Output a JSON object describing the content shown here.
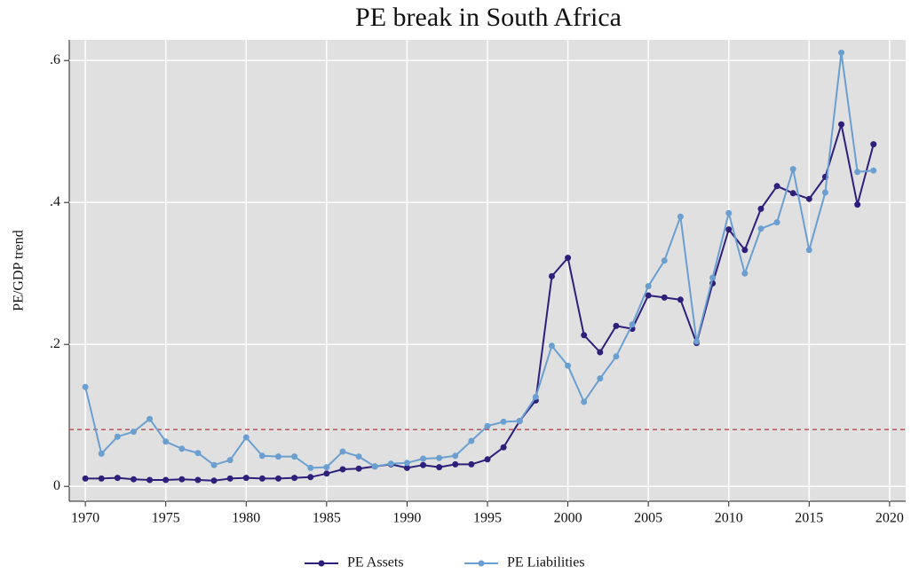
{
  "chart_data": {
    "type": "line",
    "title": "PE break in South Africa",
    "ylabel": "PE/GDP trend",
    "x": [
      1970,
      1971,
      1972,
      1973,
      1974,
      1975,
      1976,
      1977,
      1978,
      1979,
      1980,
      1981,
      1982,
      1983,
      1984,
      1985,
      1986,
      1987,
      1988,
      1989,
      1990,
      1991,
      1992,
      1993,
      1994,
      1995,
      1996,
      1997,
      1998,
      1999,
      2000,
      2001,
      2002,
      2003,
      2004,
      2005,
      2006,
      2007,
      2008,
      2009,
      2010,
      2011,
      2012,
      2013,
      2014,
      2015,
      2016,
      2017,
      2018,
      2019
    ],
    "series": [
      {
        "name": "PE Assets",
        "color": "#2e1f7a",
        "values": [
          0.011,
          0.011,
          0.012,
          0.01,
          0.009,
          0.009,
          0.01,
          0.009,
          0.008,
          0.011,
          0.012,
          0.011,
          0.011,
          0.012,
          0.013,
          0.018,
          0.024,
          0.025,
          0.028,
          0.031,
          0.026,
          0.03,
          0.027,
          0.031,
          0.031,
          0.038,
          0.055,
          0.092,
          0.121,
          0.296,
          0.322,
          0.213,
          0.189,
          0.226,
          0.222,
          0.269,
          0.266,
          0.263,
          0.202,
          0.286,
          0.362,
          0.333,
          0.391,
          0.423,
          0.413,
          0.405,
          0.436,
          0.51,
          0.397,
          0.482
        ]
      },
      {
        "name": "PE Liabilities",
        "color": "#6b9fd0",
        "values": [
          0.14,
          0.046,
          0.07,
          0.077,
          0.095,
          0.063,
          0.053,
          0.047,
          0.03,
          0.037,
          0.069,
          0.043,
          0.042,
          0.042,
          0.026,
          0.027,
          0.049,
          0.042,
          0.028,
          0.032,
          0.033,
          0.039,
          0.04,
          0.043,
          0.064,
          0.085,
          0.091,
          0.092,
          0.126,
          0.198,
          0.17,
          0.119,
          0.152,
          0.183,
          0.228,
          0.282,
          0.318,
          0.38,
          0.204,
          0.294,
          0.385,
          0.3,
          0.363,
          0.372,
          0.447,
          0.333,
          0.414,
          0.611,
          0.443,
          0.445
        ]
      }
    ],
    "xlim": [
      1969,
      2021
    ],
    "xticks": [
      1970,
      1975,
      1980,
      1985,
      1990,
      1995,
      2000,
      2005,
      2010,
      2015,
      2020
    ],
    "ylim": [
      -0.021,
      0.629
    ],
    "yticks": [
      0,
      {
        "value": 0.2,
        "label": ".2"
      },
      {
        "value": 0.4,
        "label": ".4"
      },
      {
        "value": 0.6,
        "label": ".6"
      }
    ],
    "hline": 0.08,
    "hline_color": "#b5484d",
    "grid": true,
    "legend": "bottom"
  }
}
